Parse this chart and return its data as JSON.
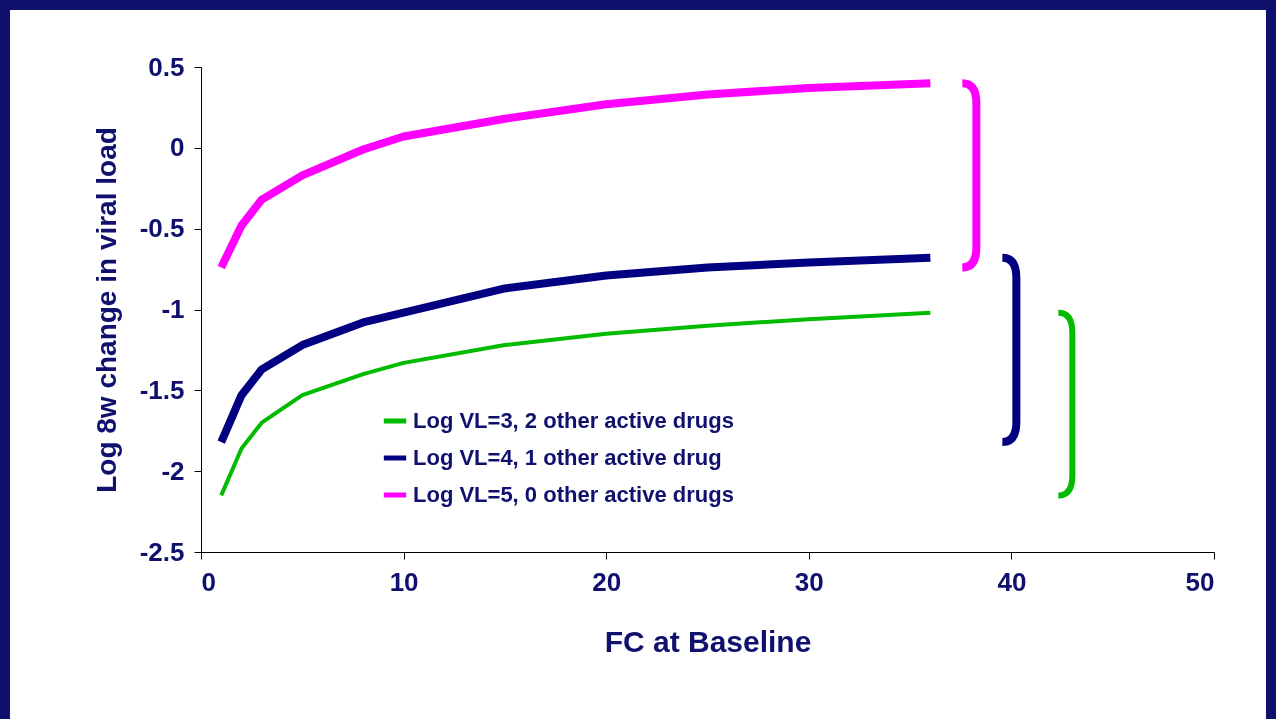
{
  "chart_data": {
    "type": "line",
    "xlabel": "FC  at Baseline",
    "ylabel": "Log 8w change in viral load",
    "x": [
      1,
      2,
      3,
      5,
      8,
      10,
      15,
      20,
      25,
      30,
      36
    ],
    "series": [
      {
        "name": "Log VL=3, 2 other active drugs",
        "color": "#00bb00",
        "values": [
          -2.15,
          -1.86,
          -1.7,
          -1.53,
          -1.4,
          -1.33,
          -1.22,
          -1.15,
          -1.1,
          -1.06,
          -1.02
        ]
      },
      {
        "name": "Log VL=4, 1 other active drug",
        "color": "#000080",
        "values": [
          -1.82,
          -1.53,
          -1.37,
          -1.22,
          -1.08,
          -1.02,
          -0.87,
          -0.79,
          -0.74,
          -0.71,
          -0.68
        ]
      },
      {
        "name": "Log VL=5, 0 other active drugs",
        "color": "#ff00ff",
        "values": [
          -0.74,
          -0.48,
          -0.32,
          -0.17,
          -0.01,
          0.07,
          0.18,
          0.27,
          0.33,
          0.37,
          0.4
        ]
      }
    ],
    "xlim": [
      0,
      50
    ],
    "xticks": [
      0,
      10,
      20,
      30,
      40,
      50
    ],
    "ylim": [
      -2.5,
      0.5
    ],
    "yticks": [
      -2.5,
      -2,
      -1.5,
      -1,
      -0.5,
      0,
      0.5
    ],
    "grid": false,
    "legend": "bottom",
    "marker": "none",
    "line_style": "solid"
  }
}
